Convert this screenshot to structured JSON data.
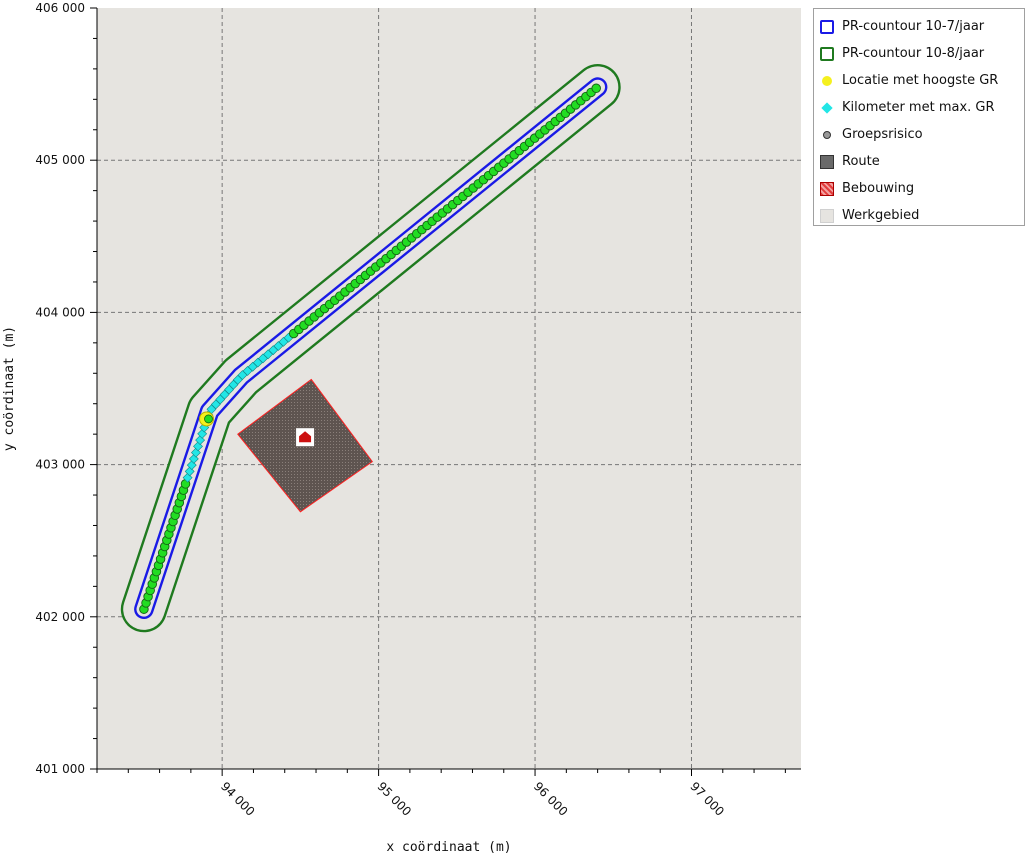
{
  "colors": {
    "plot_bg": "#e6e4e0",
    "grid": "#777777",
    "pr7": "#1a1ae6",
    "pr8": "#1f7a1f",
    "route_point": "#22dd22",
    "route_point_edge": "#146314",
    "kilometer": "#22e6e6",
    "max_location": "#f5f01e",
    "building_fill": "#5e5450",
    "building_edge": "#ff2020",
    "building_icon": "#cc1111"
  },
  "chart_data": {
    "type": "scatter",
    "xlabel": "x coördinaat (m)",
    "ylabel": "y coördinaat (m)",
    "xlim": [
      93200,
      97700
    ],
    "ylim": [
      401000,
      406000
    ],
    "xticks": [
      94000,
      95000,
      96000,
      97000
    ],
    "xtick_labels": [
      "94 000",
      "95 000",
      "96 000",
      "97 000"
    ],
    "yticks": [
      401000,
      402000,
      403000,
      404000,
      405000,
      406000
    ],
    "ytick_labels": [
      "401 000",
      "402 000",
      "403 000",
      "404 000",
      "405 000",
      "406 000"
    ],
    "grid": true,
    "route_path": [
      [
        93500,
        402050
      ],
      [
        93920,
        403350
      ],
      [
        94120,
        403580
      ],
      [
        96400,
        405480
      ]
    ],
    "max_gr_km_segment": [
      [
        93770,
        402880
      ],
      [
        94500,
        403860
      ]
    ],
    "max_gr_location": [
      93900,
      403300
    ],
    "pr_contour_7_offset_m": 55,
    "pr_contour_8_offset_m": 140,
    "building_polygon": [
      [
        94100,
        403200
      ],
      [
        94570,
        403560
      ],
      [
        94960,
        403020
      ],
      [
        94500,
        402690
      ]
    ],
    "building_icon_point": [
      94530,
      403180
    ],
    "legend_position": "right-outside"
  },
  "legend": {
    "items": [
      {
        "label": "PR-countour 10-7/jaar",
        "icon": "outline-square-blue"
      },
      {
        "label": "PR-countour 10-8/jaar",
        "icon": "outline-square-green"
      },
      {
        "label": "Locatie met hoogste GR",
        "icon": "yellow-dot"
      },
      {
        "label": "Kilometer met max. GR",
        "icon": "cyan-diamond"
      },
      {
        "label": "Groepsrisico",
        "icon": "grey-dot"
      },
      {
        "label": "Route",
        "icon": "grey-square"
      },
      {
        "label": "Bebouwing",
        "icon": "red-hatched-square"
      },
      {
        "label": "Werkgebied",
        "icon": "light-grey-square"
      }
    ]
  }
}
